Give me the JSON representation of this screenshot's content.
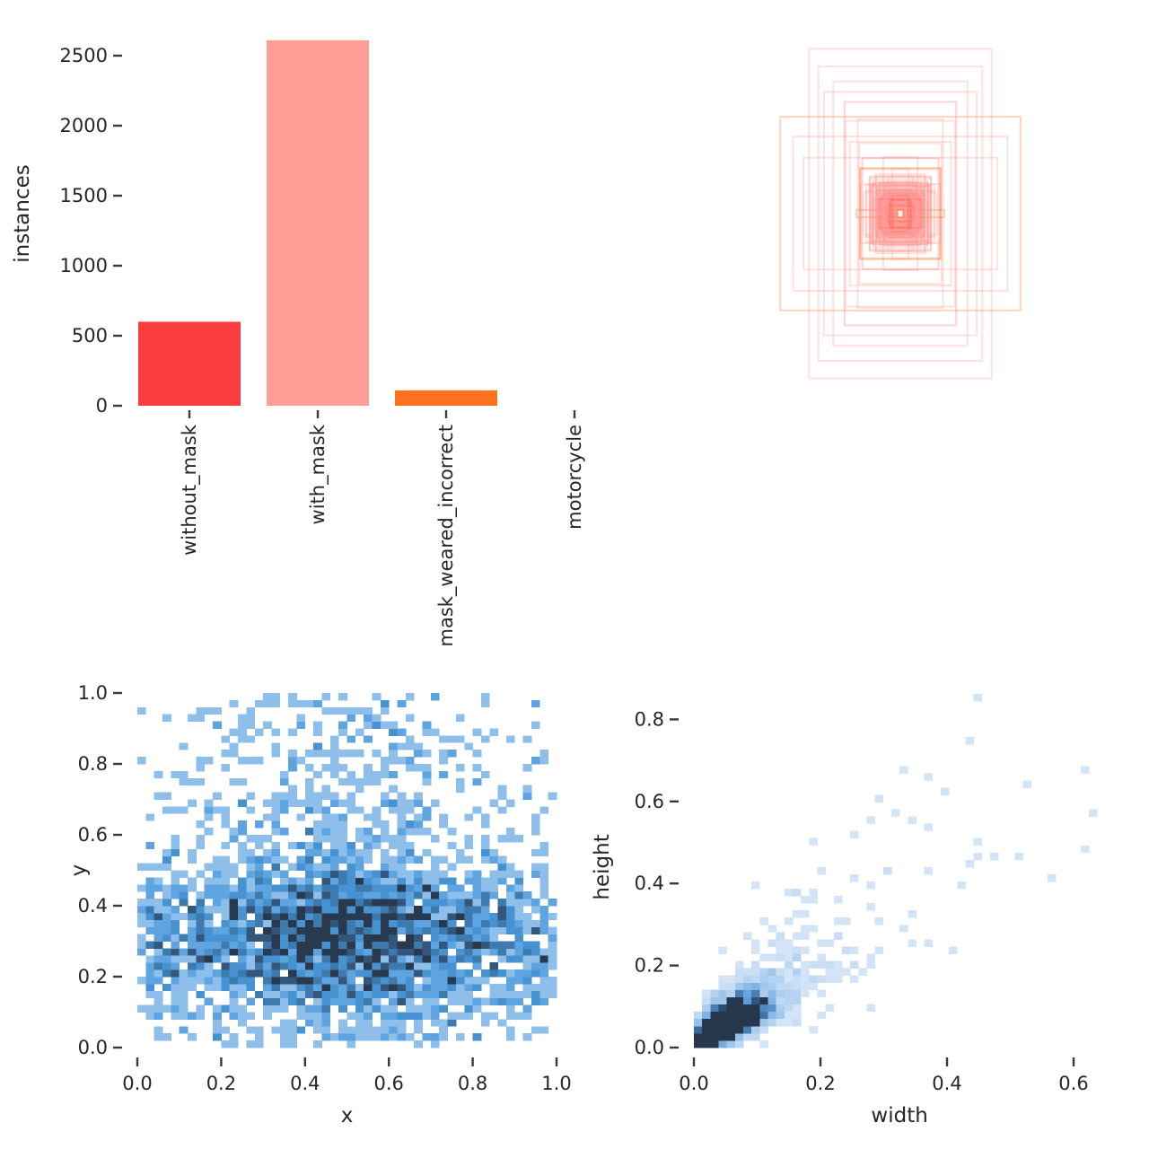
{
  "figure": {
    "background": "#ffffff",
    "description": "Dataset labels summary: class instance counts, overlaid bounding boxes, x/y center heatmap, width/height heatmap"
  },
  "text_color": "#262626",
  "tick_color": "#3a3a3a",
  "chart_data": [
    {
      "id": "instances-bar",
      "type": "bar",
      "panel": "top-left",
      "ylabel": "instances",
      "xlabel": "",
      "categories": [
        "without_mask",
        "with_mask",
        "mask_weared_incorrect",
        "motorcycle"
      ],
      "values": [
        600,
        2610,
        110,
        0
      ],
      "bar_colors": [
        "#F93C3E",
        "#FF9D97",
        "#FF701F",
        "#FFB21D"
      ],
      "yticks": [
        0,
        500,
        1000,
        1500,
        2000,
        2500
      ],
      "ylim": [
        0,
        2700
      ],
      "grid": false,
      "spines": false
    },
    {
      "id": "bbox-overlay",
      "type": "boxes",
      "panel": "top-right",
      "description": "all bounding boxes drawn centered on a common point, colored by class",
      "n_random_boxes": 150,
      "seed": 20,
      "class_colors": [
        "#F93C3E",
        "#FF9D97",
        "#FF701F"
      ],
      "class_probs": [
        0.18,
        0.78,
        0.04
      ],
      "stroke_alpha": [
        0.22,
        0.3,
        0.3
      ],
      "featured_boxes": [
        {
          "w": 0.49,
          "h": 0.885,
          "c": 1
        },
        {
          "w": 0.645,
          "h": 0.52,
          "c": 2
        },
        {
          "w": 0.36,
          "h": 0.71,
          "c": 1
        },
        {
          "w": 0.576,
          "h": 0.414,
          "c": 1
        },
        {
          "w": 0.3,
          "h": 0.6,
          "c": 0
        },
        {
          "w": 0.52,
          "h": 0.3,
          "c": 1
        },
        {
          "w": 0.44,
          "h": 0.79,
          "c": 1
        }
      ]
    },
    {
      "id": "xy-hist2d",
      "type": "heatmap",
      "panel": "bottom-left",
      "xlabel": "x",
      "ylabel": "y",
      "xticks": [
        0.0,
        0.2,
        0.4,
        0.6,
        0.8,
        1.0
      ],
      "yticks": [
        0.0,
        0.2,
        0.4,
        0.6,
        0.8,
        1.0
      ],
      "xlim": [
        0,
        1
      ],
      "ylim": [
        0,
        1
      ],
      "bins": 50,
      "n_points": 3315,
      "seed": 101,
      "x_model": {
        "uniform_share": 0.5,
        "normal_mu": 0.5,
        "normal_sigma": 0.17,
        "range": [
          0.01,
          0.99
        ]
      },
      "y_model": {
        "uniform_share": 0.26,
        "normal_mu": 0.31,
        "normal_sigma": 0.115,
        "range": [
          0.01,
          0.99
        ]
      },
      "color_stops": [
        [
          0,
          "#D2E5F6"
        ],
        [
          0.2,
          "#7FB7E7"
        ],
        [
          0.4,
          "#4D9ADC"
        ],
        [
          0.6,
          "#4189C4"
        ],
        [
          0.8,
          "#365C82"
        ],
        [
          1,
          "#293A50"
        ]
      ],
      "count_cap": 6
    },
    {
      "id": "wh-hist2d",
      "type": "heatmap",
      "panel": "bottom-right",
      "xlabel": "width",
      "ylabel": "height",
      "xticks": [
        0.0,
        0.2,
        0.4,
        0.6
      ],
      "yticks": [
        0.0,
        0.2,
        0.4,
        0.6,
        0.8
      ],
      "xlim": [
        0,
        0.65
      ],
      "ylim": [
        0,
        0.88
      ],
      "bins": 50,
      "n_points": 3300,
      "seed": 202,
      "size_model": {
        "sigma": 0.045,
        "min": 0.008,
        "w_spread": 0.3,
        "h_factor": 1.15,
        "h_spread": 0.35,
        "big_prob": 0.1,
        "big_max_mult": 3.2,
        "w_max": 0.6,
        "h_max": 0.8
      },
      "outlier_points": [
        [
          0.452,
          0.852
        ],
        [
          0.435,
          0.742
        ],
        [
          0.332,
          0.685
        ],
        [
          0.365,
          0.652
        ],
        [
          0.398,
          0.628
        ],
        [
          0.622,
          0.672
        ],
        [
          0.635,
          0.575
        ],
        [
          0.618,
          0.492
        ],
        [
          0.518,
          0.468
        ],
        [
          0.298,
          0.612
        ],
        [
          0.318,
          0.565
        ],
        [
          0.282,
          0.552
        ],
        [
          0.247,
          0.518
        ],
        [
          0.205,
          0.425
        ],
        [
          0.43,
          0.44
        ],
        [
          0.47,
          0.46
        ],
        [
          0.56,
          0.415
        ],
        [
          0.31,
          0.428
        ]
      ],
      "color_stops": [
        [
          0,
          "#DCEAF8"
        ],
        [
          0.15,
          "#BCD7F1"
        ],
        [
          0.35,
          "#8FBCE9"
        ],
        [
          0.55,
          "#5E9CD9"
        ],
        [
          0.75,
          "#3E6F9F"
        ],
        [
          1,
          "#25364D"
        ]
      ],
      "count_cap": 22
    }
  ]
}
